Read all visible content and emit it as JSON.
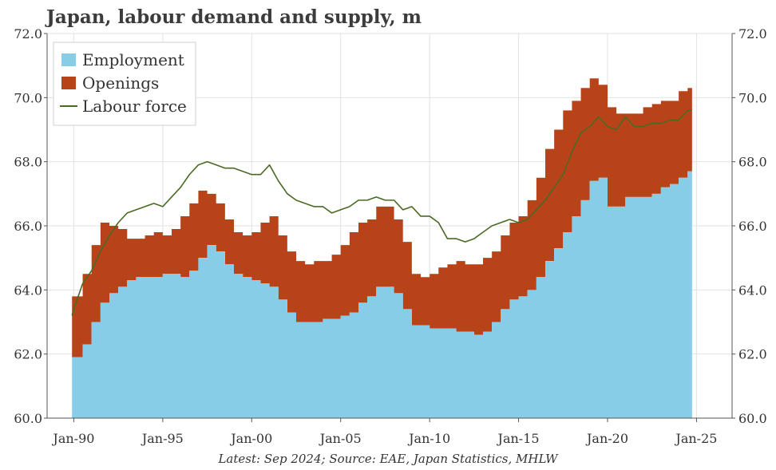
{
  "chart_data": {
    "type": "area",
    "title": "Japan, labour demand and supply, m",
    "source": "Latest: Sep 2024; Source: EAE, Japan Statistics, MHLW",
    "xlim": [
      1989.9,
      2024.75
    ],
    "ylim": [
      60,
      72
    ],
    "x_ticks": [
      1990,
      1995,
      2000,
      2005,
      2010,
      2015,
      2020,
      2025
    ],
    "x_tick_labels": [
      "Jan-90",
      "Jan-95",
      "Jan-00",
      "Jan-05",
      "Jan-10",
      "Jan-15",
      "Jan-20",
      "Jan-25"
    ],
    "y_ticks": [
      60,
      62,
      64,
      66,
      68,
      70,
      72
    ],
    "y_tick_labels": [
      "60.0",
      "62.0",
      "64.0",
      "66.0",
      "68.0",
      "70.0",
      "72.0"
    ],
    "grid": true,
    "legend_position": "top-left",
    "legend": [
      "Employment",
      "Openings",
      "Labour force"
    ],
    "colors": {
      "employment": "#87cde8",
      "openings": "#b94319",
      "labour_force": "#4a6a24"
    },
    "x": [
      1989.9,
      1990.0,
      1990.5,
      1991.0,
      1991.5,
      1992.0,
      1992.5,
      1993.0,
      1993.5,
      1994.0,
      1994.5,
      1995.0,
      1995.5,
      1996.0,
      1996.5,
      1997.0,
      1997.5,
      1998.0,
      1998.5,
      1999.0,
      1999.5,
      2000.0,
      2000.5,
      2001.0,
      2001.5,
      2002.0,
      2002.5,
      2003.0,
      2003.5,
      2004.0,
      2004.5,
      2005.0,
      2005.5,
      2006.0,
      2006.5,
      2007.0,
      2007.5,
      2008.0,
      2008.5,
      2009.0,
      2009.5,
      2010.0,
      2010.5,
      2011.0,
      2011.5,
      2012.0,
      2012.5,
      2013.0,
      2013.5,
      2014.0,
      2014.5,
      2015.0,
      2015.5,
      2016.0,
      2016.5,
      2017.0,
      2017.5,
      2018.0,
      2018.5,
      2019.0,
      2019.5,
      2020.0,
      2020.5,
      2021.0,
      2021.5,
      2022.0,
      2022.5,
      2023.0,
      2023.5,
      2024.0,
      2024.5,
      2024.75
    ],
    "series": [
      {
        "name": "Employment",
        "values": [
          61.9,
          61.9,
          62.3,
          63.0,
          63.6,
          63.9,
          64.1,
          64.3,
          64.4,
          64.4,
          64.4,
          64.5,
          64.5,
          64.4,
          64.6,
          65.0,
          65.4,
          65.2,
          64.8,
          64.5,
          64.4,
          64.3,
          64.2,
          64.1,
          63.7,
          63.3,
          63.0,
          63.0,
          63.0,
          63.1,
          63.1,
          63.2,
          63.3,
          63.6,
          63.8,
          64.1,
          64.1,
          63.9,
          63.4,
          62.9,
          62.9,
          62.8,
          62.8,
          62.8,
          62.7,
          62.7,
          62.6,
          62.7,
          63.0,
          63.4,
          63.7,
          63.8,
          64.0,
          64.4,
          64.9,
          65.3,
          65.8,
          66.3,
          66.8,
          67.4,
          67.5,
          66.6,
          66.6,
          66.9,
          66.9,
          66.9,
          67.0,
          67.2,
          67.3,
          67.5,
          67.7,
          67.8
        ]
      },
      {
        "name": "Openings",
        "values": [
          1.9,
          1.9,
          2.2,
          2.4,
          2.5,
          2.1,
          1.8,
          1.3,
          1.2,
          1.3,
          1.4,
          1.2,
          1.4,
          1.9,
          2.1,
          2.1,
          1.6,
          1.5,
          1.4,
          1.3,
          1.3,
          1.5,
          1.9,
          2.2,
          2.0,
          1.9,
          1.9,
          1.8,
          1.9,
          1.8,
          2.0,
          2.2,
          2.5,
          2.5,
          2.4,
          2.5,
          2.5,
          2.3,
          2.1,
          1.6,
          1.5,
          1.7,
          1.9,
          2.0,
          2.2,
          2.1,
          2.2,
          2.3,
          2.2,
          2.3,
          2.4,
          2.5,
          2.8,
          3.1,
          3.5,
          3.7,
          3.8,
          3.6,
          3.5,
          3.2,
          2.9,
          3.1,
          2.9,
          2.6,
          2.6,
          2.8,
          2.8,
          2.7,
          2.6,
          2.7,
          2.6,
          2.5
        ]
      },
      {
        "name": "Labour force",
        "values": [
          63.2,
          63.4,
          64.2,
          64.6,
          65.2,
          65.7,
          66.1,
          66.4,
          66.5,
          66.6,
          66.7,
          66.6,
          66.9,
          67.2,
          67.6,
          67.9,
          68.0,
          67.9,
          67.8,
          67.8,
          67.7,
          67.6,
          67.6,
          67.9,
          67.4,
          67.0,
          66.8,
          66.7,
          66.6,
          66.6,
          66.4,
          66.5,
          66.6,
          66.8,
          66.8,
          66.9,
          66.8,
          66.8,
          66.5,
          66.6,
          66.3,
          66.3,
          66.1,
          65.6,
          65.6,
          65.5,
          65.6,
          65.8,
          66.0,
          66.1,
          66.2,
          66.1,
          66.2,
          66.5,
          66.8,
          67.2,
          67.6,
          68.3,
          68.9,
          69.1,
          69.4,
          69.1,
          69.0,
          69.4,
          69.1,
          69.1,
          69.2,
          69.2,
          69.3,
          69.3,
          69.6,
          69.6
        ]
      }
    ]
  }
}
